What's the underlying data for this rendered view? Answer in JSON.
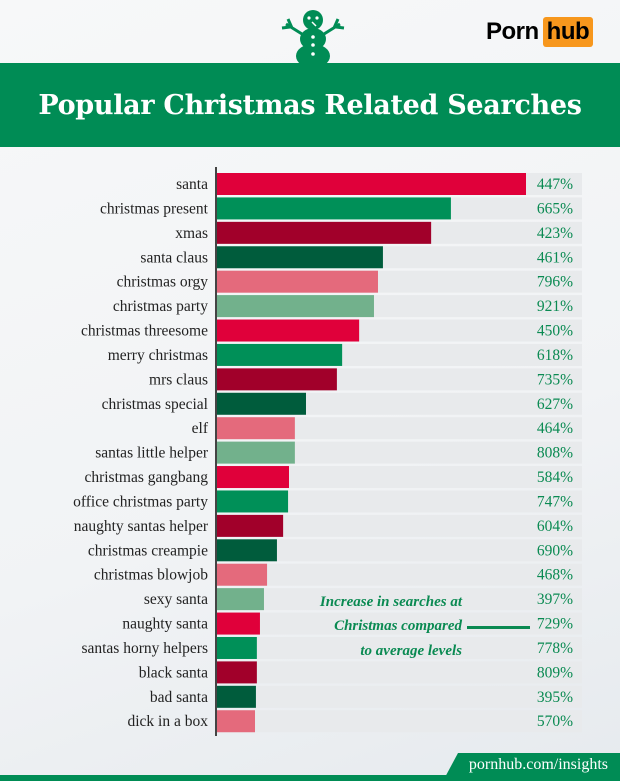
{
  "header": {
    "logo_text_1": "Porn",
    "logo_text_2": "hub",
    "title": "Popular Christmas Related Searches"
  },
  "colors": {
    "brand_green": "#008c55",
    "logo_orange": "#f7971d",
    "bar_palette": [
      "#e0003a",
      "#009058",
      "#a1002a",
      "#005c3c",
      "#e46a7c",
      "#72b18c"
    ]
  },
  "chart_data": {
    "type": "bar",
    "orientation": "horizontal",
    "title": "Popular Christmas Related Searches",
    "categories": [
      "santa",
      "christmas present",
      "xmas",
      "santa claus",
      "christmas orgy",
      "christmas party",
      "christmas threesome",
      "merry christmas",
      "mrs claus",
      "christmas special",
      "elf",
      "santas little helper",
      "christmas gangbang",
      "office christmas party",
      "naughty santas helper",
      "christmas creampie",
      "christmas blowjob",
      "sexy santa",
      "naughty santa",
      "santas horny helpers",
      "black santa",
      "bad santa",
      "dick in a box"
    ],
    "values": [
      100,
      75.7,
      69.3,
      53.7,
      52.1,
      50.8,
      46.0,
      40.5,
      38.8,
      28.8,
      25.2,
      25.2,
      23.3,
      23.0,
      21.4,
      19.4,
      16.2,
      15.2,
      13.9,
      12.9,
      12.9,
      12.6,
      12.3
    ],
    "increase_labels": [
      "447%",
      "665%",
      "423%",
      "461%",
      "796%",
      "921%",
      "450%",
      "618%",
      "735%",
      "627%",
      "464%",
      "808%",
      "584%",
      "747%",
      "604%",
      "690%",
      "468%",
      "397%",
      "729%",
      "778%",
      "809%",
      "395%",
      "570%"
    ],
    "annotation": [
      "Increase in searches at",
      "Christmas compared",
      "to average levels"
    ],
    "grid": false,
    "legend": "none"
  },
  "footer": {
    "url": "pornhub.com/insights"
  }
}
